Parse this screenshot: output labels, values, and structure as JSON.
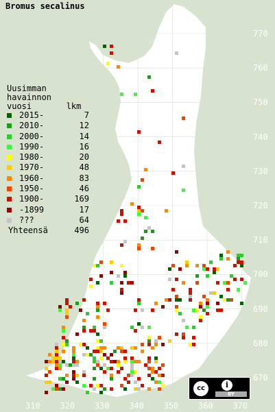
{
  "title": "Bromus secalinus",
  "legend": {
    "header": [
      "Uusimman",
      "havainnon",
      "vuosi       lkm"
    ],
    "items": [
      {
        "label": "2015-",
        "count": "7",
        "color": "#006400"
      },
      {
        "label": "2010-",
        "count": "12",
        "color": "#1e9a1e"
      },
      {
        "label": "2000-",
        "count": "14",
        "color": "#2ecc2e"
      },
      {
        "label": "1990-",
        "count": "16",
        "color": "#33ff33"
      },
      {
        "label": "1980-",
        "count": "20",
        "color": "#ffff00"
      },
      {
        "label": "1970-",
        "count": "48",
        "color": "#ffcc00"
      },
      {
        "label": "1960-",
        "count": "83",
        "color": "#ff8800"
      },
      {
        "label": "1950-",
        "count": "46",
        "color": "#ee4400"
      },
      {
        "label": "1900-",
        "count": "169",
        "color": "#cc1100"
      },
      {
        "label": "-1899",
        "count": "17",
        "color": "#990000"
      },
      {
        "label": "???",
        "count": "64",
        "color": "#c4c4c4"
      }
    ],
    "total_label": "Yhteensä",
    "total_count": "496"
  },
  "axes": {
    "y_ticks": [
      "770",
      "760",
      "750",
      "740",
      "730",
      "720",
      "710",
      "700",
      "690",
      "680",
      "670"
    ],
    "x_ticks": [
      "310",
      "320",
      "330",
      "340",
      "350",
      "360",
      "370"
    ]
  },
  "colors": {
    "background": "#d7e2cf",
    "land": "#ffffff",
    "grid": "#d7e2cf"
  },
  "license": {
    "cc": "cc",
    "by": "BY"
  }
}
